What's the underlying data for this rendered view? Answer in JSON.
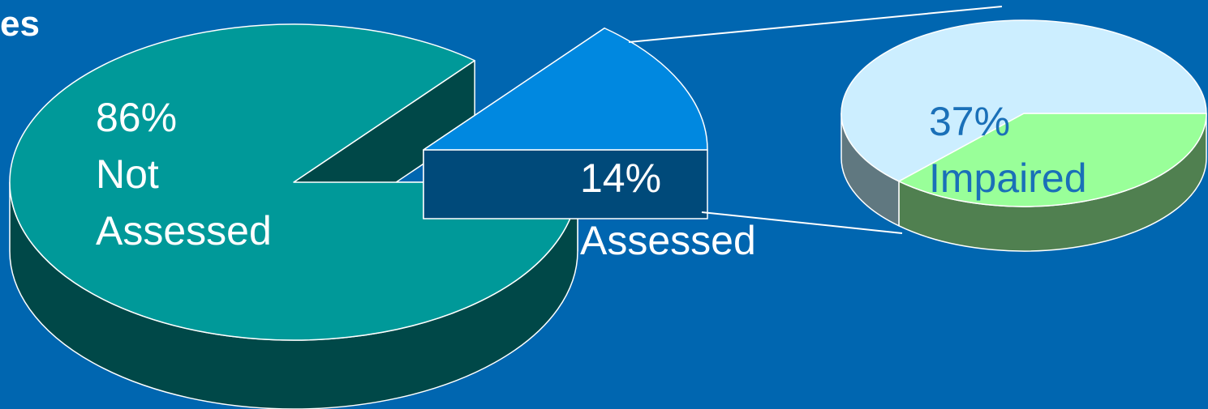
{
  "chart_data": [
    {
      "type": "pie",
      "title": "es",
      "categories": [
        "Not Assessed",
        "Assessed"
      ],
      "values": [
        86,
        14
      ],
      "value_labels": [
        "86%",
        "14%"
      ],
      "colors": [
        "#009999",
        "#0088e0"
      ],
      "side_colors": [
        "#004848",
        "#004a7a"
      ]
    },
    {
      "type": "pie",
      "categories": [
        "Impaired",
        null
      ],
      "values": [
        37,
        63
      ],
      "value_labels": [
        "37%",
        null
      ],
      "colors": [
        "#99ff99",
        "#cceeff"
      ],
      "side_colors": [
        "#508050",
        "#607880"
      ]
    }
  ]
}
